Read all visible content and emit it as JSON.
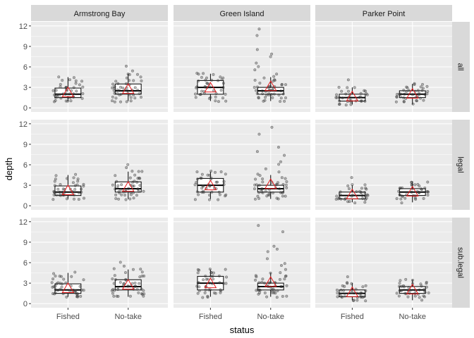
{
  "chart_data": {
    "type": "boxplot",
    "xlabel": "status",
    "ylabel": "depth",
    "ylim": [
      0,
      12
    ],
    "yticks": [
      0,
      3,
      6,
      9,
      12
    ],
    "categories": [
      "Fished",
      "No-take"
    ],
    "facet_columns": [
      "Armstrong Bay",
      "Green Island",
      "Parker Point"
    ],
    "facet_rows": [
      "all",
      "legal",
      "sub.legal"
    ],
    "mean_marker": "triangle",
    "colors": {
      "panel_bg": "#ebebeb",
      "grid": "#ffffff",
      "strip_bg": "#d9d9d9",
      "box_fill": "#ffffff",
      "box_line": "#000000",
      "points": "#333333",
      "mean": "#e31a1c"
    },
    "panels": [
      {
        "site": "Armstrong Bay",
        "group": "all",
        "boxes": [
          {
            "status": "Fished",
            "q1": 1.5,
            "median": 2.0,
            "q3": 2.9,
            "whisker_low": 1.0,
            "whisker_high": 4.5,
            "mean": 2.2
          },
          {
            "status": "No-take",
            "q1": 2.0,
            "median": 2.5,
            "q3": 3.5,
            "whisker_low": 1.0,
            "whisker_high": 5.0,
            "mean": 2.7
          }
        ]
      },
      {
        "site": "Green Island",
        "group": "all",
        "boxes": [
          {
            "status": "Fished",
            "q1": 2.0,
            "median": 3.0,
            "q3": 4.0,
            "whisker_low": 1.0,
            "whisker_high": 5.0,
            "mean": 2.9
          },
          {
            "status": "No-take",
            "q1": 2.0,
            "median": 2.5,
            "q3": 3.0,
            "whisker_low": 1.0,
            "whisker_high": 4.5,
            "mean": 3.1
          }
        ]
      },
      {
        "site": "Parker Point",
        "group": "all",
        "boxes": [
          {
            "status": "Fished",
            "q1": 1.0,
            "median": 1.5,
            "q3": 2.0,
            "whisker_low": 0.5,
            "whisker_high": 3.0,
            "mean": 1.6
          },
          {
            "status": "No-take",
            "q1": 1.5,
            "median": 2.0,
            "q3": 2.5,
            "whisker_low": 0.5,
            "whisker_high": 3.5,
            "mean": 2.0
          }
        ]
      },
      {
        "site": "Armstrong Bay",
        "group": "legal",
        "boxes": [
          {
            "status": "Fished",
            "q1": 1.5,
            "median": 2.0,
            "q3": 2.9,
            "whisker_low": 1.0,
            "whisker_high": 4.5,
            "mean": 2.2
          },
          {
            "status": "No-take",
            "q1": 2.0,
            "median": 2.5,
            "q3": 3.5,
            "whisker_low": 1.0,
            "whisker_high": 5.0,
            "mean": 2.7
          }
        ]
      },
      {
        "site": "Green Island",
        "group": "legal",
        "boxes": [
          {
            "status": "Fished",
            "q1": 2.0,
            "median": 3.0,
            "q3": 4.0,
            "whisker_low": 1.0,
            "whisker_high": 5.0,
            "mean": 2.9
          },
          {
            "status": "No-take",
            "q1": 2.0,
            "median": 2.5,
            "q3": 3.0,
            "whisker_low": 1.0,
            "whisker_high": 4.5,
            "mean": 3.1
          }
        ]
      },
      {
        "site": "Parker Point",
        "group": "legal",
        "boxes": [
          {
            "status": "Fished",
            "q1": 1.0,
            "median": 1.5,
            "q3": 2.0,
            "whisker_low": 0.5,
            "whisker_high": 3.0,
            "mean": 1.6
          },
          {
            "status": "No-take",
            "q1": 1.5,
            "median": 2.0,
            "q3": 2.5,
            "whisker_low": 0.5,
            "whisker_high": 3.5,
            "mean": 2.0
          }
        ]
      },
      {
        "site": "Armstrong Bay",
        "group": "sub.legal",
        "boxes": [
          {
            "status": "Fished",
            "q1": 1.5,
            "median": 2.0,
            "q3": 2.9,
            "whisker_low": 1.0,
            "whisker_high": 4.5,
            "mean": 2.2
          },
          {
            "status": "No-take",
            "q1": 2.0,
            "median": 2.5,
            "q3": 3.5,
            "whisker_low": 1.0,
            "whisker_high": 5.0,
            "mean": 2.7
          }
        ]
      },
      {
        "site": "Green Island",
        "group": "sub.legal",
        "boxes": [
          {
            "status": "Fished",
            "q1": 2.0,
            "median": 3.0,
            "q3": 4.0,
            "whisker_low": 1.0,
            "whisker_high": 5.0,
            "mean": 2.9
          },
          {
            "status": "No-take",
            "q1": 2.0,
            "median": 2.5,
            "q3": 3.0,
            "whisker_low": 1.0,
            "whisker_high": 4.5,
            "mean": 3.1
          }
        ]
      },
      {
        "site": "Parker Point",
        "group": "sub.legal",
        "boxes": [
          {
            "status": "Fished",
            "q1": 1.0,
            "median": 1.5,
            "q3": 2.0,
            "whisker_low": 0.5,
            "whisker_high": 3.0,
            "mean": 1.6
          },
          {
            "status": "No-take",
            "q1": 1.5,
            "median": 2.0,
            "q3": 2.5,
            "whisker_low": 0.5,
            "whisker_high": 3.5,
            "mean": 2.0
          }
        ]
      }
    ],
    "points": {
      "Armstrong Bay": {
        "Fished": [
          1,
          1,
          1,
          1,
          1,
          1.5,
          1.5,
          1.5,
          1.5,
          1.5,
          1.5,
          1.5,
          1.5,
          2,
          2,
          2,
          2,
          2,
          2,
          2,
          2,
          2,
          2,
          2.5,
          2.5,
          2.5,
          2.5,
          2.5,
          2.5,
          3,
          3,
          3,
          3,
          3,
          3,
          3.5,
          3.5,
          3.5,
          4,
          4,
          4,
          4,
          4.5,
          4.5
        ],
        "No-take": [
          1,
          1,
          1,
          1,
          1,
          1.5,
          1.5,
          1.5,
          1.5,
          1.5,
          2,
          2,
          2,
          2,
          2,
          2,
          2,
          2,
          2.5,
          2.5,
          2.5,
          2.5,
          2.5,
          2.5,
          2.5,
          3,
          3,
          3,
          3,
          3,
          3,
          3,
          3.5,
          3.5,
          3.5,
          3.5,
          4,
          4,
          4,
          4,
          4.5,
          4.5,
          5,
          5,
          5,
          5.5,
          6
        ]
      },
      "Green Island": {
        "Fished": [
          1,
          1,
          1,
          1.5,
          1.5,
          1.5,
          1.5,
          1.5,
          2,
          2,
          2,
          2,
          2,
          2,
          2.5,
          2.5,
          2.5,
          2.5,
          3,
          3,
          3,
          3,
          3,
          3,
          3,
          3.5,
          3.5,
          3.5,
          3.5,
          4,
          4,
          4,
          4,
          4,
          4.5,
          4.5,
          4.5,
          4.5,
          5,
          5,
          5,
          5
        ],
        "No-take": [
          1,
          1,
          1,
          1,
          1.5,
          1.5,
          1.5,
          1.5,
          1.5,
          1.5,
          2,
          2,
          2,
          2,
          2,
          2,
          2,
          2,
          2,
          2.5,
          2.5,
          2.5,
          2.5,
          2.5,
          2.5,
          2.5,
          2.5,
          3,
          3,
          3,
          3,
          3,
          3,
          3,
          3.5,
          3.5,
          3.5,
          3.5,
          4,
          4,
          4,
          4,
          4.5,
          4.5,
          5,
          5.5,
          6,
          6.5,
          7.5,
          8,
          8.5,
          10.5,
          11.5
        ]
      },
      "Parker Point": {
        "Fished": [
          0.5,
          0.5,
          0.5,
          0.5,
          1,
          1,
          1,
          1,
          1,
          1,
          1,
          1,
          1,
          1.5,
          1.5,
          1.5,
          1.5,
          1.5,
          1.5,
          1.5,
          1.5,
          2,
          2,
          2,
          2,
          2,
          2,
          2.5,
          2.5,
          2.5,
          2.5,
          3,
          3,
          3,
          4
        ],
        "No-take": [
          0.5,
          1,
          1,
          1,
          1,
          1,
          1,
          1.5,
          1.5,
          1.5,
          1.5,
          1.5,
          1.5,
          1.5,
          1.5,
          2,
          2,
          2,
          2,
          2,
          2,
          2,
          2,
          2,
          2.5,
          2.5,
          2.5,
          2.5,
          2.5,
          2.5,
          2.5,
          3,
          3,
          3,
          3,
          3,
          3.5,
          3.5,
          3.5
        ]
      }
    }
  }
}
